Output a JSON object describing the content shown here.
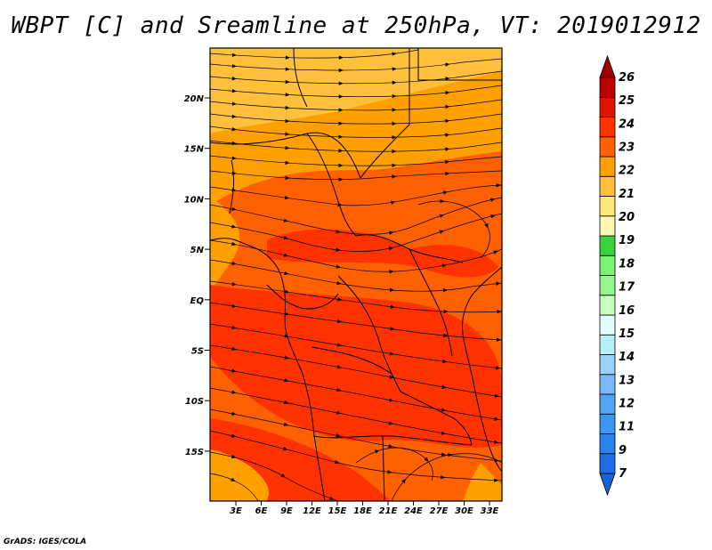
{
  "title": "WBPT [C] and Sreamline at 250hPa, VT: 2019012912",
  "footer": "GrADS: IGES/COLA",
  "lat_labels": [
    "20N",
    "15N",
    "10N",
    "5N",
    "EQ",
    "5S",
    "10S",
    "15S"
  ],
  "lon_labels": [
    "3E",
    "6E",
    "9E",
    "12E",
    "15E",
    "18E",
    "21E",
    "24E",
    "27E",
    "30E",
    "33E"
  ],
  "colorbar": {
    "labels": [
      "7",
      "9",
      "11",
      "12",
      "13",
      "14",
      "15",
      "16",
      "17",
      "18",
      "19",
      "20",
      "21",
      "22",
      "23",
      "24",
      "25",
      "26"
    ],
    "colors": [
      "#1464d2",
      "#1e6eeb",
      "#2882f0",
      "#3c96f5",
      "#50a5f5",
      "#78b9fa",
      "#96d2fa",
      "#b4f0fa",
      "#e1ffff",
      "#c8ffbe",
      "#96f58c",
      "#78f573",
      "#37d23c",
      "#fff5b4",
      "#ffe878",
      "#ffc03c",
      "#ffa000",
      "#ff6000",
      "#ff3200",
      "#e11400",
      "#c00000",
      "#a50000"
    ]
  },
  "field_colors": {
    "north_light": "#ffc03c",
    "north_mid": "#ffa000",
    "central": "#ff6000",
    "core": "#ff3200"
  }
}
